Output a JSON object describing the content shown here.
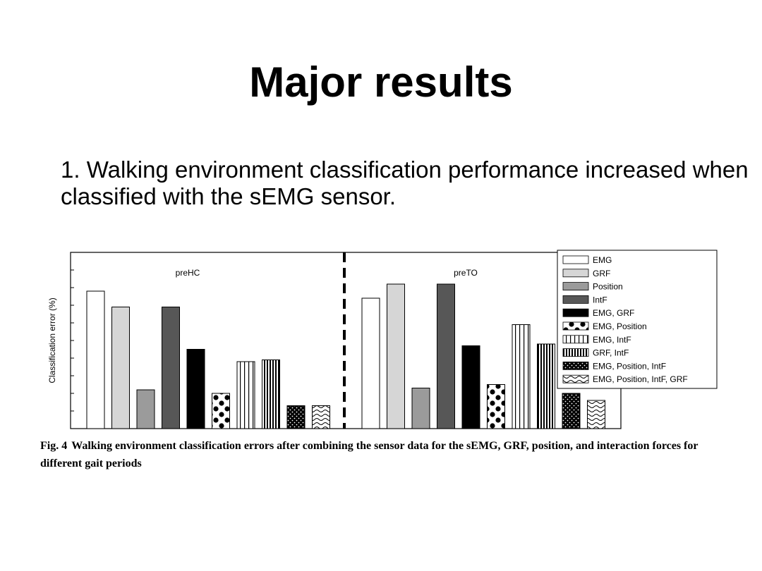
{
  "slide": {
    "title": "Major results",
    "bullet": "1. Walking environment classification performance increased when classified with the sEMG sensor."
  },
  "figure": {
    "caption_label": "Fig. 4",
    "caption_text": "Walking environment classification errors after combining the sensor data for the sEMG, GRF, position, and interaction forces for different gait periods"
  },
  "chart_data": {
    "type": "bar",
    "ylabel": "Classification error (%)",
    "xlabel": "",
    "ylim": [
      0,
      100
    ],
    "ytick_labels": false,
    "legend_position": "top-right",
    "groups": [
      "preHC",
      "preTO"
    ],
    "series": [
      {
        "name": "EMG",
        "pattern": "white",
        "values": [
          78,
          74
        ]
      },
      {
        "name": "GRF",
        "pattern": "lightgray",
        "values": [
          69,
          82
        ]
      },
      {
        "name": "Position",
        "pattern": "gray",
        "values": [
          22,
          23
        ]
      },
      {
        "name": "IntF",
        "pattern": "darkgray",
        "values": [
          69,
          82
        ]
      },
      {
        "name": "EMG, GRF",
        "pattern": "black",
        "values": [
          45,
          47
        ]
      },
      {
        "name": "EMG, Position",
        "pattern": "bigdots",
        "values": [
          20,
          25
        ]
      },
      {
        "name": "EMG, IntF",
        "pattern": "vlines",
        "values": [
          38,
          59
        ]
      },
      {
        "name": "GRF, IntF",
        "pattern": "densevlines",
        "values": [
          39,
          48
        ]
      },
      {
        "name": "EMG, Position, IntF",
        "pattern": "blackdots",
        "values": [
          13,
          20
        ]
      },
      {
        "name": "EMG, Position, IntF, GRF",
        "pattern": "waves",
        "values": [
          13,
          16
        ]
      }
    ]
  },
  "colors": {
    "white": "#ffffff",
    "lightgray": "#d6d6d6",
    "gray": "#9b9b9b",
    "darkgray": "#575757",
    "black": "#000000"
  }
}
